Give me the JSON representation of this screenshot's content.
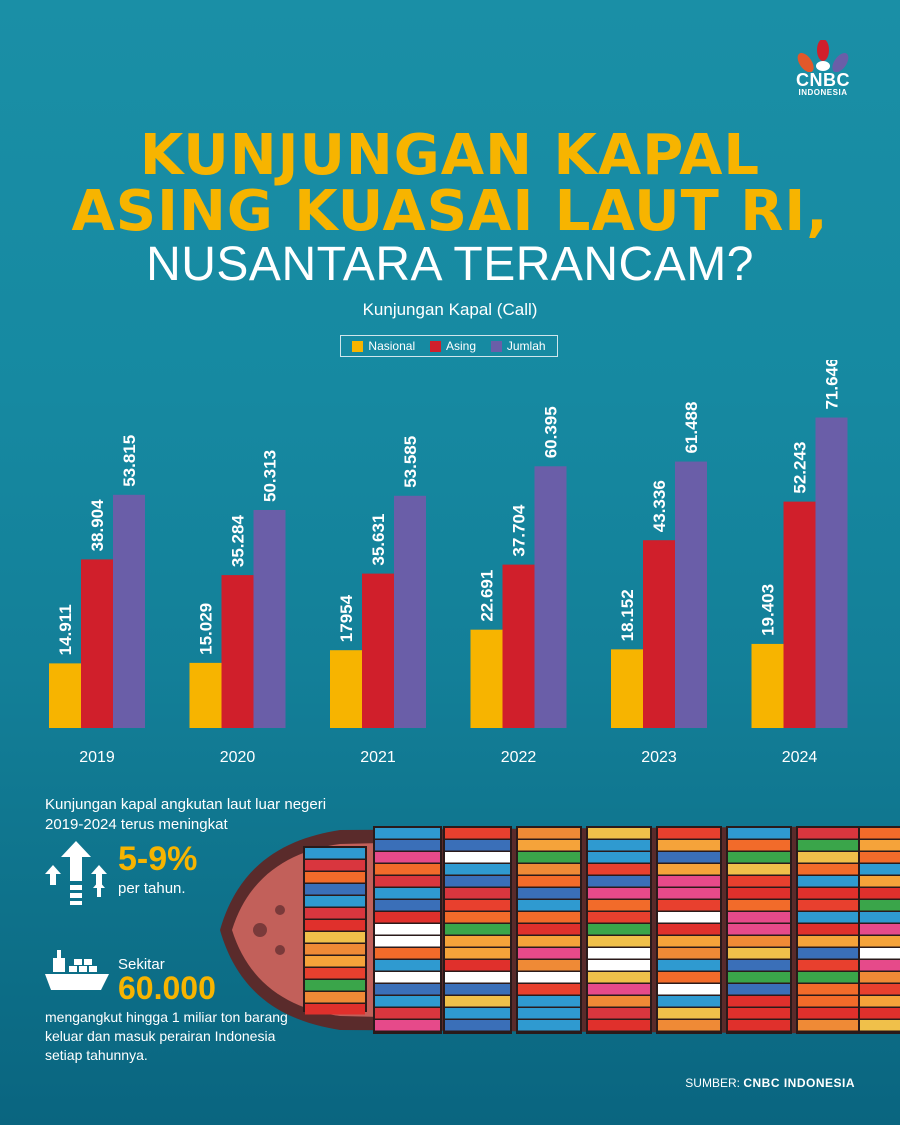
{
  "brand": {
    "name": "CNBC",
    "sub": "INDONESIA"
  },
  "title": {
    "line1": "KUNJUNGAN KAPAL",
    "line2": "ASING KUASAI LAUT RI,",
    "line3": "NUSANTARA TERANCAM?"
  },
  "colors": {
    "nasional": "#f7b400",
    "asing": "#d01f2b",
    "jumlah": "#6a5ea8",
    "accent": "#f7b400"
  },
  "chart_data": {
    "type": "bar",
    "title": "Kunjungan Kapal (Call)",
    "categories": [
      "2019",
      "2020",
      "2021",
      "2022",
      "2023",
      "2024"
    ],
    "series": [
      {
        "name": "Nasional",
        "values": [
          14911,
          15029,
          17954,
          22691,
          18152,
          19403
        ],
        "labels": [
          "14.911",
          "15.029",
          "17954",
          "22.691",
          "18.152",
          "19.403"
        ]
      },
      {
        "name": "Asing",
        "values": [
          38904,
          35284,
          35631,
          37704,
          43336,
          52243
        ],
        "labels": [
          "38.904",
          "35.284",
          "35.631",
          "37.704",
          "43.336",
          "52.243"
        ]
      },
      {
        "name": "Jumlah",
        "values": [
          53815,
          50313,
          53585,
          60395,
          61488,
          71646
        ],
        "labels": [
          "53.815",
          "50.313",
          "53.585",
          "60.395",
          "61.488",
          "71.646"
        ]
      }
    ],
    "ylim": [
      0,
      72000
    ],
    "grid": false,
    "legend": "top-center"
  },
  "notes": {
    "text1": "Kunjungan kapal angkutan laut luar negeri 2019-2024 terus meningkat",
    "stat1": "5-9%",
    "stat1_unit": "per tahun.",
    "pre2": "Sekitar",
    "stat2": "60.000",
    "text2": "mengangkut hingga 1 miliar ton barang keluar dan masuk perairan Indonesia setiap tahunnya.",
    "arrows_icon": "growth-arrows-icon",
    "ship_icon": "cargo-ship-icon"
  },
  "source": {
    "label": "SUMBER:",
    "value": "CNBC INDONESIA"
  }
}
